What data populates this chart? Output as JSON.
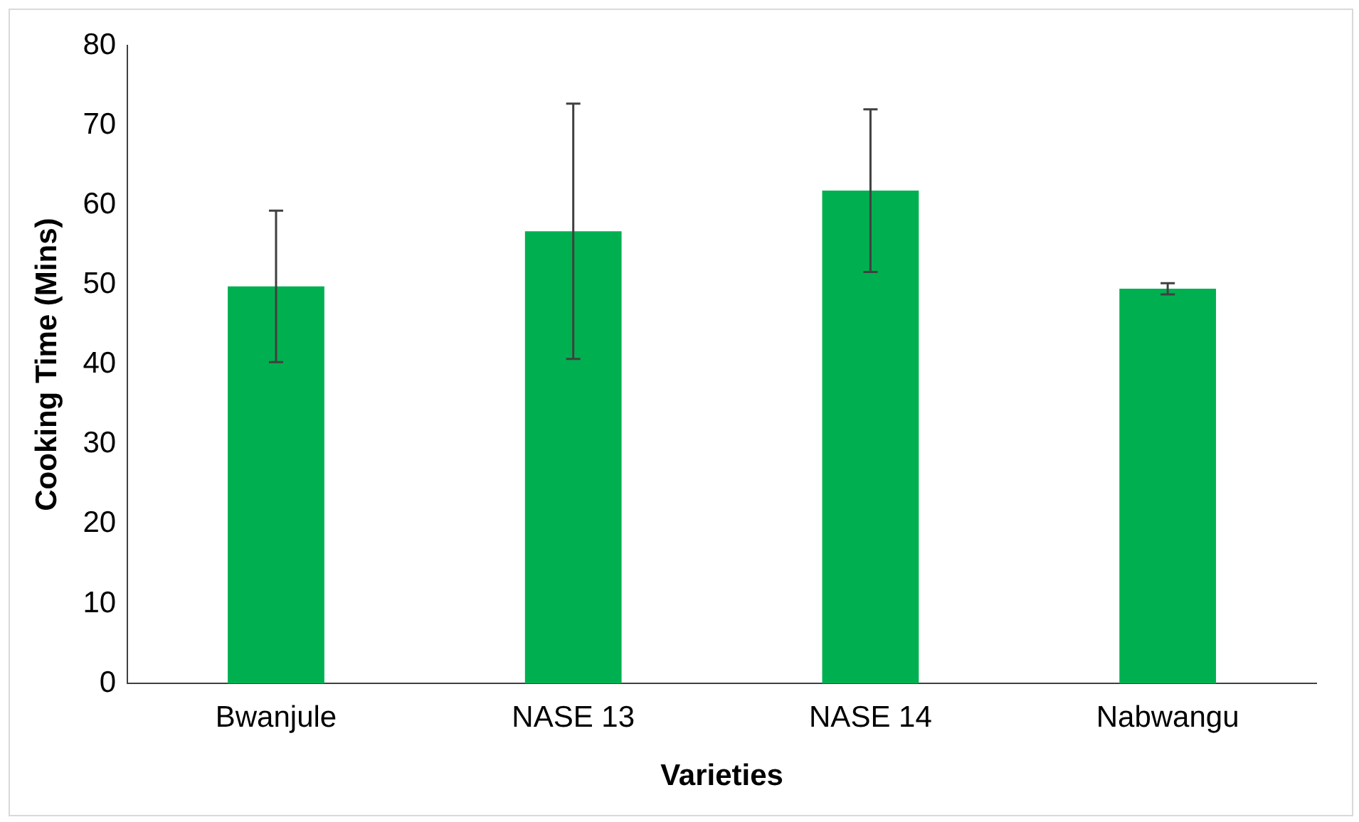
{
  "chart_data": {
    "type": "bar",
    "xlabel": "Varieties",
    "ylabel": "Cooking Time (Mins)",
    "categories": [
      "Bwanjule",
      "NASE 13",
      "NASE 14",
      "Nabwangu"
    ],
    "values": [
      49.8,
      56.7,
      61.8,
      49.5
    ],
    "errors": [
      9.5,
      16,
      10.2,
      0.7
    ],
    "color": "#00b050",
    "ylim": [
      0,
      80
    ],
    "yticks": [
      0,
      10,
      20,
      30,
      40,
      50,
      60,
      70,
      80
    ],
    "grid": false,
    "legend": false
  }
}
